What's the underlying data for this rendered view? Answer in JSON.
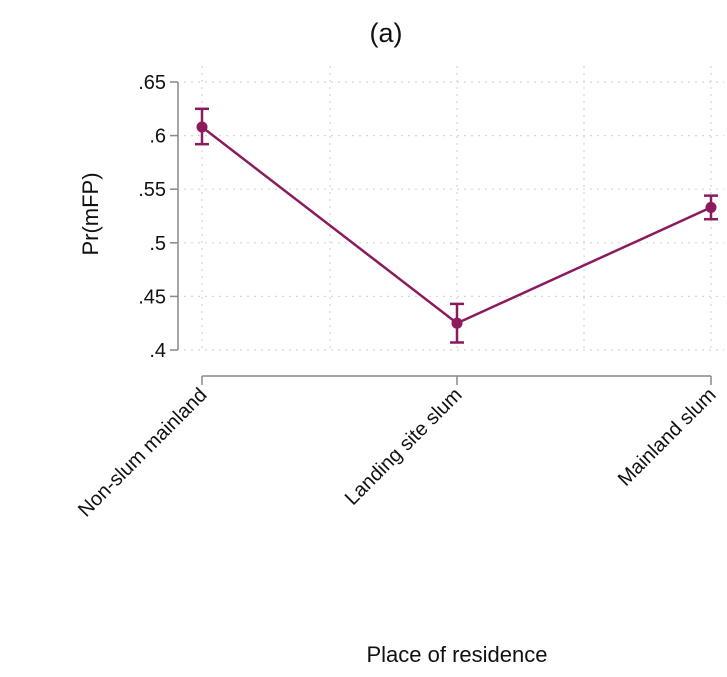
{
  "chart_data": {
    "type": "line",
    "title": "(a)",
    "xlabel": "Place of residence",
    "ylabel": "Pr(mFP)",
    "categories": [
      "Non-slum mainland",
      "Landing site slum",
      "Mainland slum"
    ],
    "series": [
      {
        "values": [
          0.608,
          0.425,
          0.533
        ],
        "ci_low": [
          0.592,
          0.407,
          0.522
        ],
        "ci_high": [
          0.625,
          0.443,
          0.544
        ]
      }
    ],
    "yticks": [
      0.4,
      0.45,
      0.5,
      0.55,
      0.6,
      0.65
    ],
    "ytick_labels": [
      ".4",
      ".45",
      ".5",
      ".55",
      ".6",
      ".65"
    ],
    "ylim": [
      0.4,
      0.65
    ],
    "grid": true,
    "colors": {
      "series": "#8b1a5e",
      "axis": "#888888",
      "grid": "#cfd8dc"
    }
  }
}
